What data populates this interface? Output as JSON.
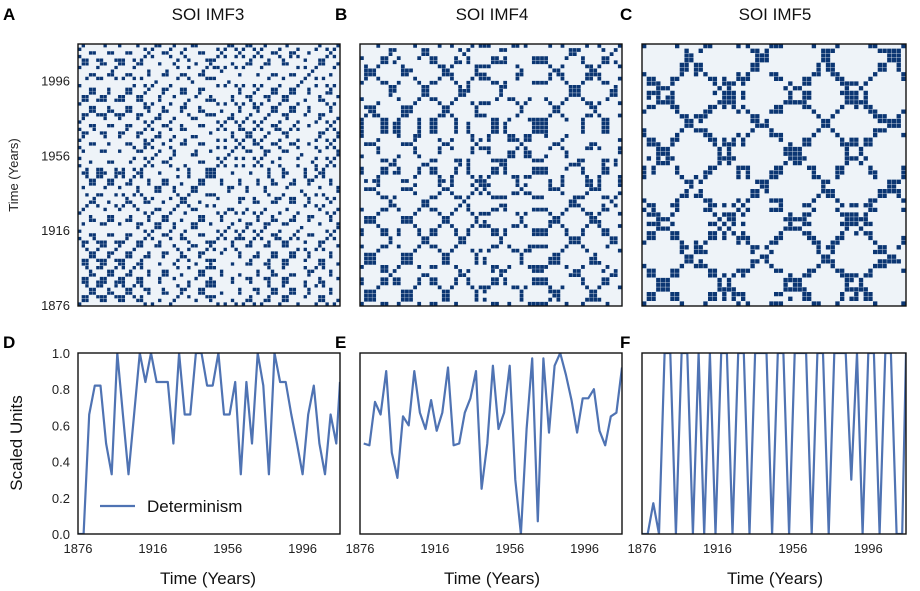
{
  "figure": {
    "panel_letters": [
      "A",
      "B",
      "C",
      "D",
      "E",
      "F"
    ]
  },
  "colors": {
    "recurrence": "#0b3673",
    "recurrence_bg": "#eef3f8",
    "line": "#4f73b3",
    "frame": "#111111"
  },
  "chart_data": [
    {
      "type": "heatmap",
      "panel": "A",
      "title": "SOI IMF3",
      "ylabel": "Time (Years)",
      "ytick_labels": [
        "1996",
        "1956",
        "1916",
        "1876"
      ],
      "ytick_values": [
        1996,
        1956,
        1916,
        1876
      ],
      "range": [
        1876,
        2016
      ],
      "description": "Recurrence plot (binary matrix)"
    },
    {
      "type": "heatmap",
      "panel": "B",
      "title": "SOI IMF4",
      "range": [
        1876,
        2016
      ]
    },
    {
      "type": "heatmap",
      "panel": "C",
      "title": "SOI IMF5",
      "range": [
        1876,
        2016
      ]
    },
    {
      "type": "line",
      "panel": "D",
      "xlabel": "Time (Years)",
      "ylabel": "Scaled Units",
      "xtick_labels": [
        "1876",
        "1916",
        "1956",
        "1996"
      ],
      "xtick_values": [
        1876,
        1916,
        1956,
        1996
      ],
      "ytick_labels": [
        "0.0",
        "0.2",
        "0.4",
        "0.6",
        "0.8",
        "1.0"
      ],
      "ytick_values": [
        0,
        0.2,
        0.4,
        0.6,
        0.8,
        1.0
      ],
      "xlim": [
        1876,
        2016
      ],
      "ylim": [
        0,
        1
      ],
      "legend": "Determinism",
      "series": [
        {
          "name": "Determinism",
          "x": [
            1876,
            1879,
            1882,
            1885,
            1888,
            1891,
            1894,
            1897,
            1900,
            1903,
            1906,
            1909,
            1912,
            1915,
            1918,
            1921,
            1924,
            1927,
            1930,
            1933,
            1936,
            1939,
            1942,
            1945,
            1948,
            1951,
            1954,
            1957,
            1960,
            1963,
            1966,
            1969,
            1972,
            1975,
            1978,
            1981,
            1984,
            1987,
            1990,
            1993,
            1996,
            1999,
            2002,
            2005,
            2008,
            2011,
            2014,
            2016
          ],
          "values": [
            0.0,
            0.0,
            0.66,
            0.82,
            0.82,
            0.5,
            0.33,
            1.0,
            0.66,
            0.33,
            0.66,
            1.0,
            0.84,
            1.0,
            0.84,
            0.84,
            0.84,
            0.5,
            1.0,
            0.66,
            0.66,
            1.0,
            1.0,
            0.82,
            0.82,
            1.0,
            0.66,
            0.66,
            0.84,
            0.33,
            0.84,
            0.5,
            1.0,
            0.82,
            0.33,
            1.0,
            0.84,
            0.84,
            0.66,
            0.5,
            0.33,
            0.66,
            0.82,
            0.5,
            0.33,
            0.66,
            0.5,
            0.84
          ]
        }
      ]
    },
    {
      "type": "line",
      "panel": "E",
      "xlabel": "Time (Years)",
      "xtick_labels": [
        "1876",
        "1916",
        "1956",
        "1996"
      ],
      "xtick_values": [
        1876,
        1916,
        1956,
        1996
      ],
      "xlim": [
        1876,
        2016
      ],
      "ylim": [
        0,
        1
      ],
      "series": [
        {
          "name": "Determinism",
          "x": [
            1878,
            1881,
            1884,
            1887,
            1890,
            1893,
            1896,
            1899,
            1902,
            1905,
            1908,
            1911,
            1914,
            1917,
            1920,
            1923,
            1926,
            1929,
            1932,
            1935,
            1938,
            1941,
            1944,
            1947,
            1950,
            1953,
            1956,
            1959,
            1962,
            1965,
            1968,
            1971,
            1974,
            1977,
            1980,
            1983,
            1986,
            1989,
            1992,
            1995,
            1998,
            2001,
            2004,
            2007,
            2010,
            2013,
            2016
          ],
          "values": [
            0.5,
            0.49,
            0.73,
            0.66,
            0.9,
            0.45,
            0.31,
            0.65,
            0.6,
            0.9,
            0.67,
            0.58,
            0.74,
            0.57,
            0.67,
            0.92,
            0.49,
            0.5,
            0.67,
            0.75,
            0.9,
            0.25,
            0.5,
            0.93,
            0.58,
            0.67,
            0.93,
            0.3,
            0.0,
            0.58,
            0.97,
            0.07,
            0.97,
            0.56,
            0.93,
            1.0,
            0.88,
            0.74,
            0.56,
            0.75,
            0.75,
            0.8,
            0.57,
            0.49,
            0.65,
            0.67,
            0.92
          ]
        }
      ]
    },
    {
      "type": "line",
      "panel": "F",
      "xlabel": "Time (Years)",
      "xtick_labels": [
        "1876",
        "1916",
        "1956",
        "1996"
      ],
      "xtick_values": [
        1876,
        1916,
        1956,
        1996
      ],
      "xlim": [
        1876,
        2016
      ],
      "ylim": [
        0,
        1
      ],
      "series": [
        {
          "name": "Determinism",
          "x": [
            1876,
            1879,
            1882,
            1885,
            1888,
            1891,
            1894,
            1897,
            1900,
            1903,
            1906,
            1909,
            1912,
            1915,
            1918,
            1921,
            1924,
            1927,
            1930,
            1933,
            1936,
            1939,
            1942,
            1945,
            1948,
            1951,
            1954,
            1957,
            1960,
            1963,
            1966,
            1969,
            1972,
            1975,
            1978,
            1981,
            1984,
            1987,
            1990,
            1993,
            1996,
            1999,
            2002,
            2005,
            2008,
            2011,
            2014,
            2016
          ],
          "values": [
            0.0,
            0.0,
            0.17,
            0.0,
            1.0,
            1.0,
            0.0,
            1.0,
            1.0,
            0.0,
            1.0,
            0.0,
            1.0,
            0.0,
            1.0,
            1.0,
            0.0,
            1.0,
            1.0,
            0.0,
            1.0,
            1.0,
            1.0,
            0.0,
            1.0,
            1.0,
            0.0,
            1.0,
            1.0,
            1.0,
            0.0,
            1.0,
            1.0,
            0.0,
            1.0,
            1.0,
            1.0,
            0.3,
            1.0,
            0.0,
            1.0,
            1.0,
            0.0,
            1.0,
            1.0,
            0.0,
            0.0,
            1.0
          ]
        }
      ]
    }
  ]
}
